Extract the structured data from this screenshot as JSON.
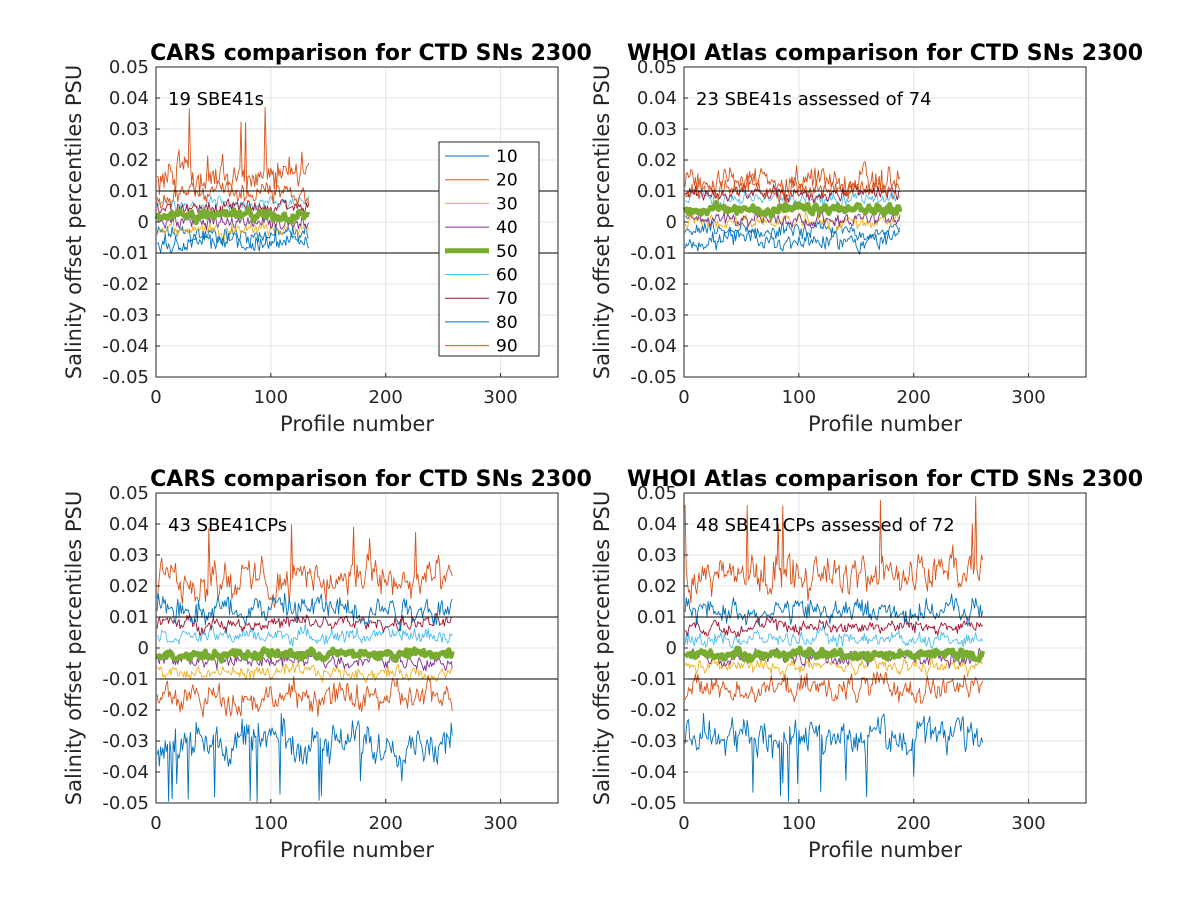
{
  "percentiles": [
    "10",
    "20",
    "30",
    "40",
    "50",
    "60",
    "70",
    "80",
    "90"
  ],
  "colors": {
    "10": "#0072BD",
    "20": "#D95319",
    "30": "#EDB120",
    "40": "#7E2F8E",
    "50": "#77AC30",
    "60": "#4DBEEE",
    "70": "#A2142F",
    "80": "#0072BD",
    "90": "#D95319"
  },
  "chart_data": [
    {
      "type": "line",
      "title": "CARS comparison for CTD SNs 2300",
      "annotation": "19 SBE41s",
      "xlabel": "Profile number",
      "ylabel": "Salinity offset percentiles PSU",
      "xlim": [
        0,
        350
      ],
      "ylim": [
        -0.05,
        0.05
      ],
      "xticks": [
        "0",
        "100",
        "200",
        "300"
      ],
      "yticks": [
        "0.05",
        "0.04",
        "0.03",
        "0.02",
        "0.01",
        "0",
        "-0.01",
        "-0.02",
        "-0.03",
        "-0.04",
        "-0.05"
      ],
      "reference_lines": [
        0.01,
        -0.01
      ],
      "grid": true,
      "legend": {
        "show": true,
        "location": "top-right"
      },
      "x_range": [
        1,
        133
      ],
      "series": [
        {
          "name": "10",
          "approx_level": -0.004,
          "spread": 0.004
        },
        {
          "name": "20",
          "approx_level": 0.015,
          "spread": 0.008,
          "peak": 0.038
        },
        {
          "name": "30",
          "approx_level": -0.002,
          "spread": 0.003
        },
        {
          "name": "40",
          "approx_level": 0.0,
          "spread": 0.003
        },
        {
          "name": "50",
          "approx_level": 0.002,
          "spread": 0.002
        },
        {
          "name": "60",
          "approx_level": 0.006,
          "spread": 0.003
        },
        {
          "name": "70",
          "approx_level": 0.005,
          "spread": 0.003
        },
        {
          "name": "80",
          "approx_level": -0.007,
          "spread": 0.004
        },
        {
          "name": "90",
          "approx_level": 0.009,
          "spread": 0.004
        }
      ]
    },
    {
      "type": "line",
      "title": "WHOI Atlas comparison for CTD SNs 2300",
      "annotation": "23 SBE41s assessed of 74",
      "xlabel": "Profile number",
      "ylabel": "Salinity offset percentiles PSU",
      "xlim": [
        0,
        350
      ],
      "ylim": [
        -0.05,
        0.05
      ],
      "xticks": [
        "0",
        "100",
        "200",
        "300"
      ],
      "yticks": [
        "0.05",
        "0.04",
        "0.03",
        "0.02",
        "0.01",
        "0",
        "-0.01",
        "-0.02",
        "-0.03",
        "-0.04",
        "-0.05"
      ],
      "reference_lines": [
        0.01,
        -0.01
      ],
      "grid": true,
      "legend": {
        "show": false
      },
      "x_range": [
        1,
        188
      ],
      "series": [
        {
          "name": "10",
          "approx_level": -0.003,
          "spread": 0.003
        },
        {
          "name": "20",
          "approx_level": 0.013,
          "spread": 0.006
        },
        {
          "name": "30",
          "approx_level": 0.0,
          "spread": 0.003
        },
        {
          "name": "40",
          "approx_level": 0.001,
          "spread": 0.003
        },
        {
          "name": "50",
          "approx_level": 0.004,
          "spread": 0.002
        },
        {
          "name": "60",
          "approx_level": 0.008,
          "spread": 0.003
        },
        {
          "name": "70",
          "approx_level": 0.009,
          "spread": 0.003
        },
        {
          "name": "80",
          "approx_level": -0.006,
          "spread": 0.004
        },
        {
          "name": "90",
          "approx_level": 0.011,
          "spread": 0.004
        }
      ]
    },
    {
      "type": "line",
      "title": "CARS comparison for CTD SNs 2300",
      "annotation": "43 SBE41CPs",
      "xlabel": "Profile number",
      "ylabel": "Salinity offset percentiles PSU",
      "xlim": [
        0,
        350
      ],
      "ylim": [
        -0.05,
        0.05
      ],
      "xticks": [
        "0",
        "100",
        "200",
        "300"
      ],
      "yticks": [
        "0.05",
        "0.04",
        "0.03",
        "0.02",
        "0.01",
        "0",
        "-0.01",
        "-0.02",
        "-0.03",
        "-0.04",
        "-0.05"
      ],
      "reference_lines": [
        0.01,
        -0.01
      ],
      "grid": true,
      "legend": {
        "show": false
      },
      "x_range": [
        1,
        258
      ],
      "series": [
        {
          "name": "10",
          "approx_level": -0.03,
          "spread": 0.008,
          "trough": -0.05
        },
        {
          "name": "20",
          "approx_level": 0.022,
          "spread": 0.008,
          "peak": 0.04
        },
        {
          "name": "30",
          "approx_level": -0.008,
          "spread": 0.003
        },
        {
          "name": "40",
          "approx_level": -0.004,
          "spread": 0.003
        },
        {
          "name": "50",
          "approx_level": -0.002,
          "spread": 0.002
        },
        {
          "name": "60",
          "approx_level": 0.004,
          "spread": 0.003
        },
        {
          "name": "70",
          "approx_level": 0.008,
          "spread": 0.003
        },
        {
          "name": "80",
          "approx_level": 0.013,
          "spread": 0.006
        },
        {
          "name": "90",
          "approx_level": -0.016,
          "spread": 0.006
        }
      ]
    },
    {
      "type": "line",
      "title": "WHOI Atlas comparison for CTD SNs 2300",
      "annotation": "48 SBE41CPs assessed of 72",
      "xlabel": "Profile number",
      "ylabel": "Salinity offset percentiles PSU",
      "xlim": [
        0,
        350
      ],
      "ylim": [
        -0.05,
        0.05
      ],
      "xticks": [
        "0",
        "100",
        "200",
        "300"
      ],
      "yticks": [
        "0.05",
        "0.04",
        "0.03",
        "0.02",
        "0.01",
        "0",
        "-0.01",
        "-0.02",
        "-0.03",
        "-0.04",
        "-0.05"
      ],
      "reference_lines": [
        0.01,
        -0.01
      ],
      "grid": true,
      "legend": {
        "show": false
      },
      "x_range": [
        1,
        260
      ],
      "series": [
        {
          "name": "10",
          "approx_level": -0.028,
          "spread": 0.008,
          "trough": -0.05
        },
        {
          "name": "20",
          "approx_level": 0.024,
          "spread": 0.008,
          "peak": 0.05
        },
        {
          "name": "30",
          "approx_level": -0.006,
          "spread": 0.003
        },
        {
          "name": "40",
          "approx_level": -0.003,
          "spread": 0.003
        },
        {
          "name": "50",
          "approx_level": -0.002,
          "spread": 0.002
        },
        {
          "name": "60",
          "approx_level": 0.003,
          "spread": 0.003
        },
        {
          "name": "70",
          "approx_level": 0.007,
          "spread": 0.003
        },
        {
          "name": "80",
          "approx_level": 0.012,
          "spread": 0.005
        },
        {
          "name": "90",
          "approx_level": -0.013,
          "spread": 0.005
        }
      ]
    }
  ]
}
